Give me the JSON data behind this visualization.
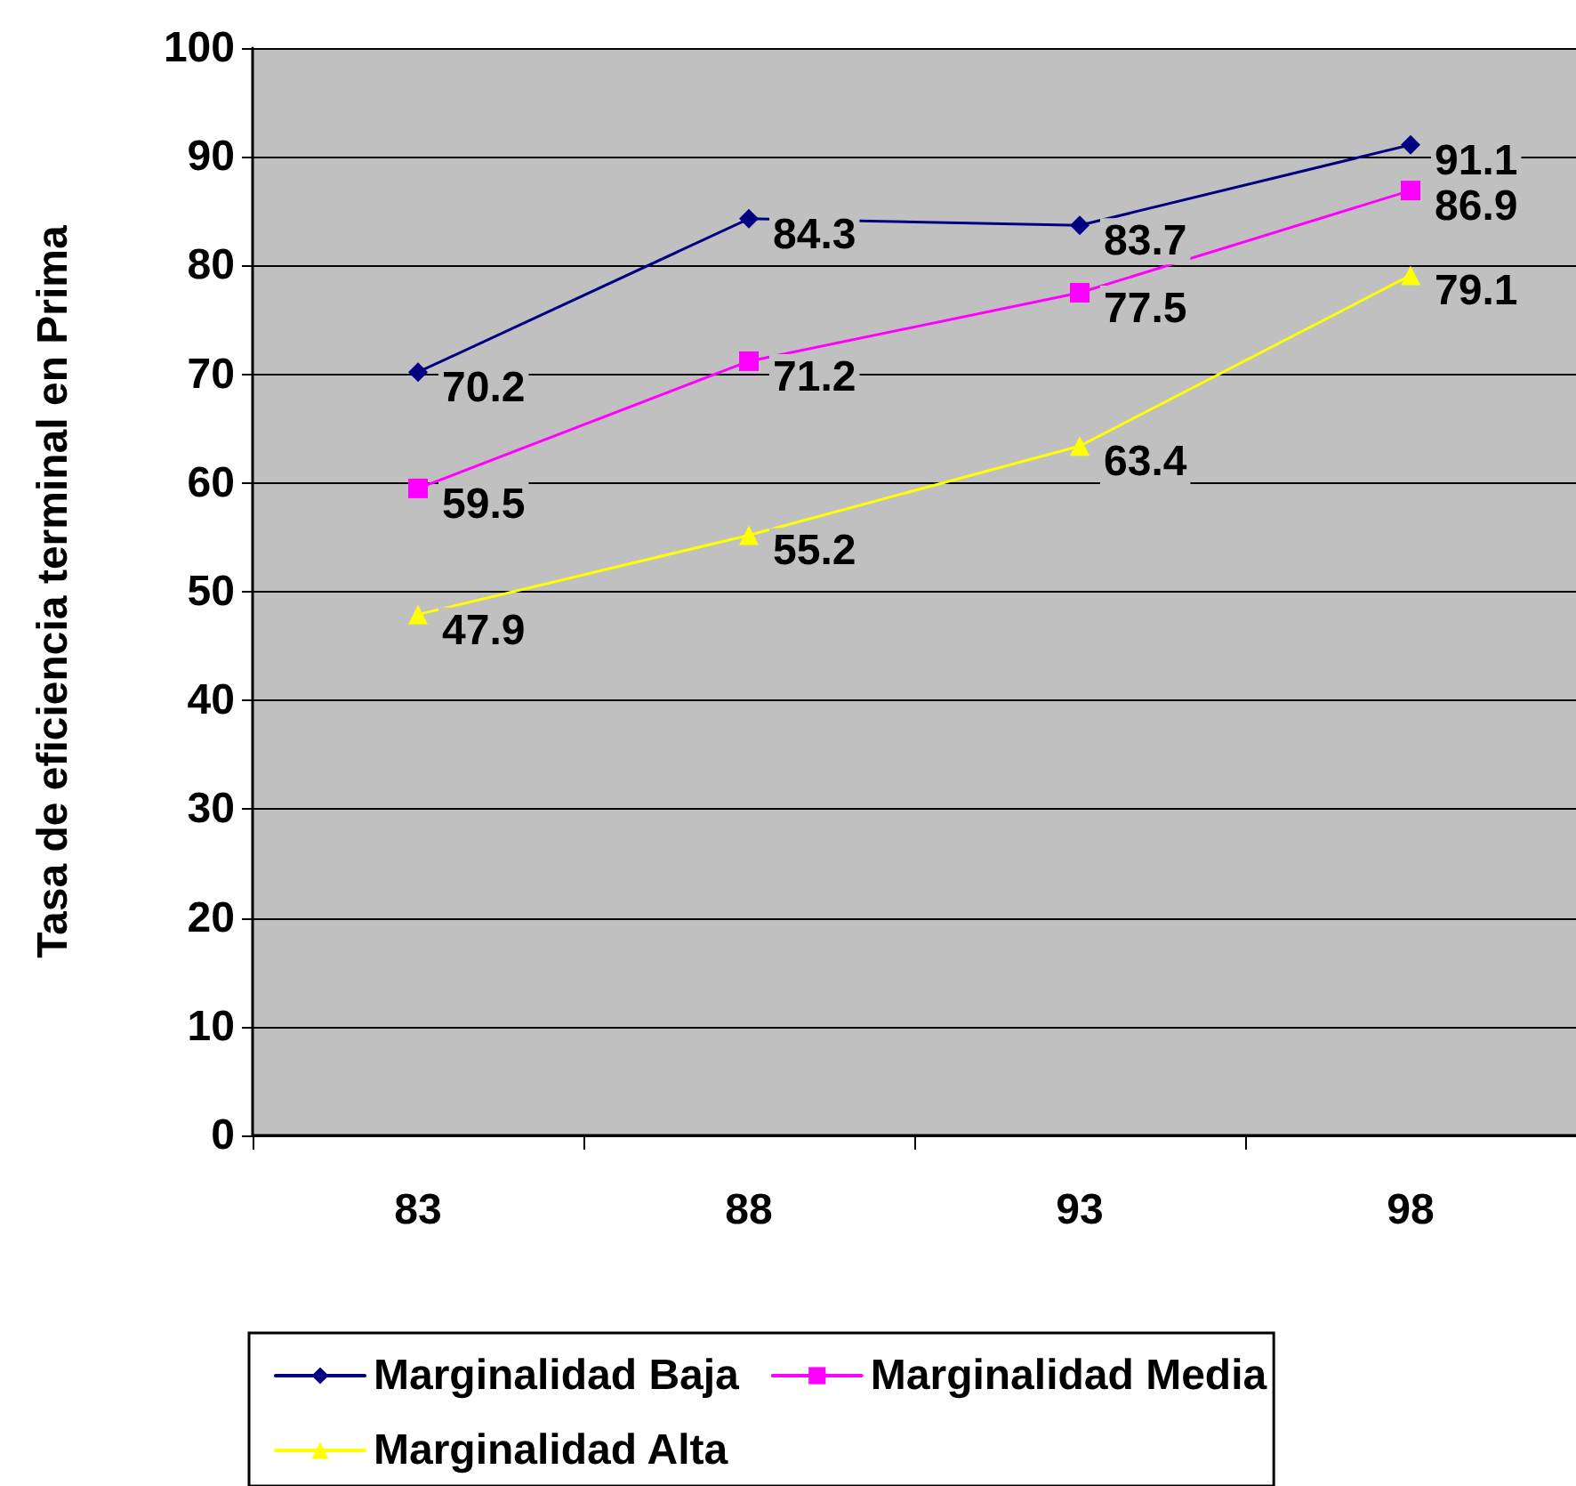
{
  "chart_data": {
    "type": "line",
    "ylabel": "Tasa de eficiencia terminal en Prima",
    "categories": [
      "83",
      "88",
      "93",
      "98"
    ],
    "series": [
      {
        "name": "Marginalidad Baja",
        "color": "#000080",
        "marker": "diamond",
        "values": [
          70.2,
          84.3,
          83.7,
          91.1
        ]
      },
      {
        "name": "Marginalidad Media",
        "color": "#ff00ff",
        "marker": "square",
        "values": [
          59.5,
          71.2,
          77.5,
          86.9
        ]
      },
      {
        "name": "Marginalidad Alta",
        "color": "#ffff00",
        "marker": "triangle",
        "values": [
          47.9,
          55.2,
          63.4,
          79.1
        ]
      }
    ],
    "ylim": [
      0,
      100
    ],
    "yticks": [
      0,
      10,
      20,
      30,
      40,
      50,
      60,
      70,
      80,
      90,
      100
    ],
    "grid": "y",
    "legend": "bottom",
    "data_labels": true,
    "line_style": "solid"
  }
}
